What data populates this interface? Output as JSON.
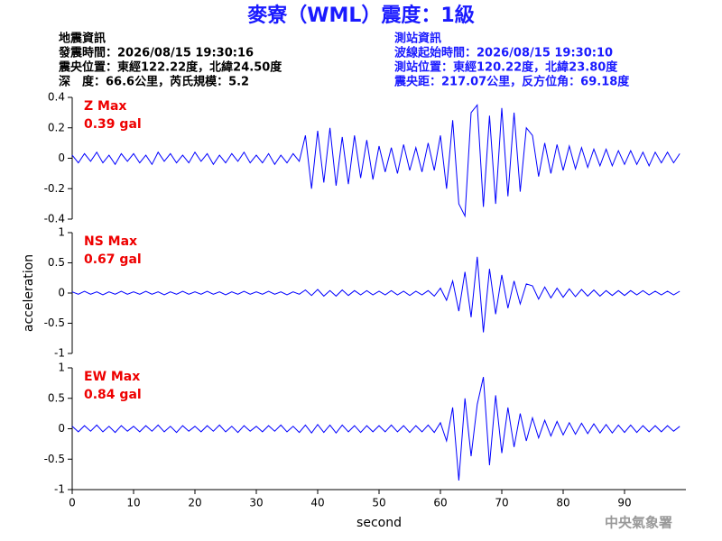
{
  "header": {
    "title": "麥寮（WML）震度：1級",
    "left": [
      "地震資訊",
      "發震時間：2026/08/15 19:30:16",
      "震央位置：東經122.22度，北緯24.50度",
      "深　度：66.6公里，芮氏規模：5.2"
    ],
    "right": [
      "測站資訊",
      "波線起始時間：2026/08/15 19:30:10",
      "測站位置：東經120.22度，北緯23.80度",
      "震央距：217.07公里，反方位角：69.18度"
    ]
  },
  "footer": "中央氣象署",
  "chart_data": [
    {
      "type": "line",
      "annotations": [
        "Z Max",
        "0.39 gal"
      ],
      "color": "#0000ff",
      "xlim": [
        0,
        100
      ],
      "ylim": [
        -0.4,
        0.4
      ],
      "yticks": [
        -0.4,
        -0.2,
        0,
        0.2,
        0.4
      ],
      "x": [
        0,
        1,
        2,
        3,
        4,
        5,
        6,
        7,
        8,
        9,
        10,
        11,
        12,
        13,
        14,
        15,
        16,
        17,
        18,
        19,
        20,
        21,
        22,
        23,
        24,
        25,
        26,
        27,
        28,
        29,
        30,
        31,
        32,
        33,
        34,
        35,
        36,
        37,
        38,
        39,
        40,
        41,
        42,
        43,
        44,
        45,
        46,
        47,
        48,
        49,
        50,
        51,
        52,
        53,
        54,
        55,
        56,
        57,
        58,
        59,
        60,
        61,
        62,
        63,
        64,
        65,
        66,
        67,
        68,
        69,
        70,
        71,
        72,
        73,
        74,
        75,
        76,
        77,
        78,
        79,
        80,
        81,
        82,
        83,
        84,
        85,
        86,
        87,
        88,
        89,
        90,
        91,
        92,
        93,
        94,
        95,
        96,
        97,
        98,
        99
      ],
      "values": [
        0.02,
        -0.03,
        0.03,
        -0.02,
        0.04,
        -0.03,
        0.02,
        -0.04,
        0.03,
        -0.02,
        0.03,
        -0.03,
        0.02,
        -0.04,
        0.04,
        -0.02,
        0.03,
        -0.03,
        0.02,
        -0.03,
        0.04,
        -0.02,
        0.03,
        -0.04,
        0.02,
        -0.03,
        0.03,
        -0.02,
        0.04,
        -0.03,
        0.02,
        -0.03,
        0.03,
        -0.04,
        0.02,
        -0.03,
        0.03,
        -0.02,
        0.15,
        -0.2,
        0.18,
        -0.16,
        0.2,
        -0.18,
        0.14,
        -0.17,
        0.15,
        -0.13,
        0.12,
        -0.14,
        0.08,
        -0.09,
        0.07,
        -0.1,
        0.09,
        -0.08,
        0.07,
        -0.09,
        0.1,
        -0.08,
        0.15,
        -0.2,
        0.25,
        -0.3,
        -0.38,
        0.3,
        0.35,
        -0.32,
        0.28,
        -0.3,
        0.33,
        -0.25,
        0.3,
        -0.22,
        0.2,
        0.15,
        -0.12,
        0.1,
        -0.1,
        0.09,
        -0.08,
        0.08,
        -0.07,
        0.07,
        -0.06,
        0.06,
        -0.05,
        0.06,
        -0.05,
        0.05,
        -0.04,
        0.05,
        -0.04,
        0.04,
        -0.05,
        0.04,
        -0.03,
        0.04,
        -0.03,
        0.03
      ]
    },
    {
      "type": "line",
      "annotations": [
        "NS Max",
        "0.67 gal"
      ],
      "color": "#0000ff",
      "y_label": "acceleration",
      "xlim": [
        0,
        100
      ],
      "ylim": [
        -1,
        1
      ],
      "yticks": [
        -1,
        -0.5,
        0,
        0.5,
        1
      ],
      "x": [
        0,
        1,
        2,
        3,
        4,
        5,
        6,
        7,
        8,
        9,
        10,
        11,
        12,
        13,
        14,
        15,
        16,
        17,
        18,
        19,
        20,
        21,
        22,
        23,
        24,
        25,
        26,
        27,
        28,
        29,
        30,
        31,
        32,
        33,
        34,
        35,
        36,
        37,
        38,
        39,
        40,
        41,
        42,
        43,
        44,
        45,
        46,
        47,
        48,
        49,
        50,
        51,
        52,
        53,
        54,
        55,
        56,
        57,
        58,
        59,
        60,
        61,
        62,
        63,
        64,
        65,
        66,
        67,
        68,
        69,
        70,
        71,
        72,
        73,
        74,
        75,
        76,
        77,
        78,
        79,
        80,
        81,
        82,
        83,
        84,
        85,
        86,
        87,
        88,
        89,
        90,
        91,
        92,
        93,
        94,
        95,
        96,
        97,
        98,
        99
      ],
      "values": [
        0.02,
        -0.02,
        0.03,
        -0.02,
        0.02,
        -0.03,
        0.02,
        -0.02,
        0.03,
        -0.02,
        0.02,
        -0.02,
        0.03,
        -0.02,
        0.02,
        -0.03,
        0.02,
        -0.02,
        0.03,
        -0.02,
        0.02,
        -0.02,
        0.03,
        -0.02,
        0.02,
        -0.03,
        0.02,
        -0.02,
        0.03,
        -0.02,
        0.02,
        -0.02,
        0.03,
        -0.02,
        0.02,
        -0.03,
        0.02,
        -0.02,
        0.05,
        -0.04,
        0.06,
        -0.05,
        0.04,
        -0.05,
        0.05,
        -0.04,
        0.04,
        -0.03,
        0.04,
        -0.03,
        0.03,
        -0.03,
        0.04,
        -0.03,
        0.03,
        -0.04,
        0.03,
        -0.03,
        0.04,
        -0.05,
        0.08,
        -0.12,
        0.2,
        -0.3,
        0.35,
        -0.4,
        0.6,
        -0.65,
        0.4,
        -0.35,
        0.3,
        -0.25,
        0.2,
        -0.18,
        0.15,
        0.12,
        -0.1,
        0.1,
        -0.08,
        0.08,
        -0.07,
        0.07,
        -0.06,
        0.06,
        -0.05,
        0.05,
        -0.05,
        0.04,
        -0.04,
        0.04,
        -0.04,
        0.04,
        -0.03,
        0.04,
        -0.03,
        0.03,
        -0.03,
        0.03,
        -0.03,
        0.03
      ]
    },
    {
      "type": "line",
      "annotations": [
        "EW Max",
        "0.84 gal"
      ],
      "color": "#0000ff",
      "x_label": "second",
      "xlim": [
        0,
        100
      ],
      "xticks": [
        0,
        10,
        20,
        30,
        40,
        50,
        60,
        70,
        80,
        90
      ],
      "ylim": [
        -1,
        1
      ],
      "yticks": [
        -1,
        -0.5,
        0,
        0.5,
        1
      ],
      "x": [
        0,
        1,
        2,
        3,
        4,
        5,
        6,
        7,
        8,
        9,
        10,
        11,
        12,
        13,
        14,
        15,
        16,
        17,
        18,
        19,
        20,
        21,
        22,
        23,
        24,
        25,
        26,
        27,
        28,
        29,
        30,
        31,
        32,
        33,
        34,
        35,
        36,
        37,
        38,
        39,
        40,
        41,
        42,
        43,
        44,
        45,
        46,
        47,
        48,
        49,
        50,
        51,
        52,
        53,
        54,
        55,
        56,
        57,
        58,
        59,
        60,
        61,
        62,
        63,
        64,
        65,
        66,
        67,
        68,
        69,
        70,
        71,
        72,
        73,
        74,
        75,
        76,
        77,
        78,
        79,
        80,
        81,
        82,
        83,
        84,
        85,
        86,
        87,
        88,
        89,
        90,
        91,
        92,
        93,
        94,
        95,
        96,
        97,
        98,
        99
      ],
      "values": [
        0.04,
        -0.05,
        0.05,
        -0.04,
        0.06,
        -0.05,
        0.04,
        -0.06,
        0.05,
        -0.04,
        0.04,
        -0.05,
        0.05,
        -0.04,
        0.06,
        -0.05,
        0.04,
        -0.06,
        0.05,
        -0.04,
        0.04,
        -0.05,
        0.05,
        -0.04,
        0.06,
        -0.05,
        0.04,
        -0.06,
        0.05,
        -0.04,
        0.04,
        -0.05,
        0.05,
        -0.04,
        0.06,
        -0.05,
        0.04,
        -0.06,
        0.06,
        -0.07,
        0.07,
        -0.06,
        0.06,
        -0.07,
        0.06,
        -0.05,
        0.05,
        -0.06,
        0.05,
        -0.05,
        0.05,
        -0.05,
        0.06,
        -0.05,
        0.05,
        -0.06,
        0.05,
        -0.05,
        0.06,
        -0.06,
        0.1,
        -0.2,
        0.35,
        -0.85,
        0.5,
        -0.45,
        0.4,
        0.85,
        -0.6,
        0.55,
        -0.4,
        0.35,
        -0.3,
        0.25,
        -0.2,
        0.18,
        -0.15,
        0.14,
        -0.12,
        0.12,
        -0.1,
        0.1,
        -0.09,
        0.09,
        -0.08,
        0.08,
        -0.07,
        0.07,
        -0.07,
        0.06,
        -0.06,
        0.06,
        -0.06,
        0.05,
        -0.05,
        0.05,
        -0.05,
        0.05,
        -0.04,
        0.04
      ]
    }
  ]
}
